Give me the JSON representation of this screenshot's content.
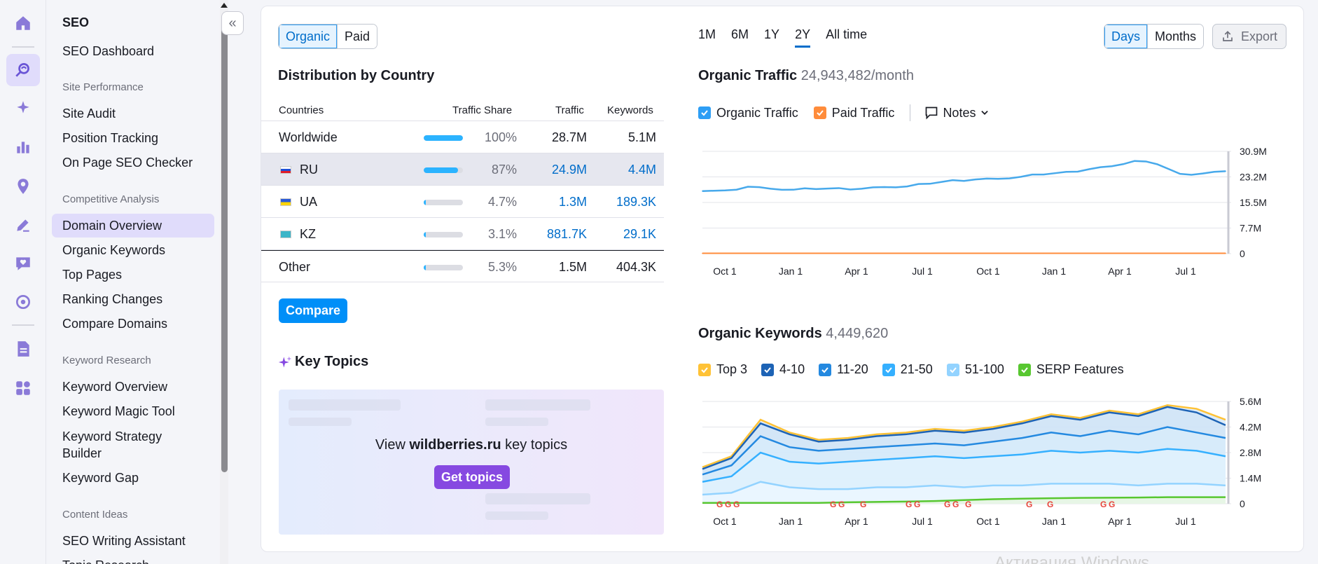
{
  "nav": {
    "section_title": "SEO",
    "dashboard": "SEO Dashboard",
    "groups": [
      {
        "header": "Site Performance",
        "items": [
          "Site Audit",
          "Position Tracking",
          "On Page SEO Checker"
        ]
      },
      {
        "header": "Competitive Analysis",
        "items": [
          "Domain Overview",
          "Organic Keywords",
          "Top Pages",
          "Ranking Changes",
          "Compare Domains"
        ]
      },
      {
        "header": "Keyword Research",
        "items": [
          "Keyword Overview",
          "Keyword Magic Tool",
          "Keyword Strategy Builder",
          "Keyword Gap"
        ]
      },
      {
        "header": "Content Ideas",
        "items": [
          "SEO Writing Assistant",
          "Topic Research"
        ]
      }
    ],
    "active_item": "Domain Overview"
  },
  "toggle": {
    "organic": "Organic",
    "paid": "Paid",
    "selected": "Organic"
  },
  "distribution": {
    "title": "Distribution by Country",
    "columns": [
      "Countries",
      "Traffic Share",
      "Traffic",
      "Keywords"
    ],
    "rows": [
      {
        "country": "Worldwide",
        "share": "100%",
        "share_value": 1.0,
        "traffic": "28.7M",
        "keywords": "5.1M"
      },
      {
        "country": "RU",
        "share": "87%",
        "share_value": 0.87,
        "traffic": "24.9M",
        "keywords": "4.4M"
      },
      {
        "country": "UA",
        "share": "4.7%",
        "share_value": 0.047,
        "traffic": "1.3M",
        "keywords": "189.3K"
      },
      {
        "country": "KZ",
        "share": "3.1%",
        "share_value": 0.031,
        "traffic": "881.7K",
        "keywords": "29.1K"
      },
      {
        "country": "Other",
        "share": "5.3%",
        "share_value": 0.053,
        "traffic": "1.5M",
        "keywords": "404.3K"
      }
    ],
    "compare_button": "Compare"
  },
  "key_topics": {
    "title": "Key Topics",
    "message_prefix": "View ",
    "domain": "wildberries.ru",
    "message_suffix": " key topics",
    "button": "Get topics"
  },
  "periods": {
    "items": [
      "1M",
      "6M",
      "1Y",
      "2Y",
      "All time"
    ],
    "selected": "2Y"
  },
  "granularity": {
    "days": "Days",
    "months": "Months",
    "selected": "Days"
  },
  "export_label": "Export",
  "traffic": {
    "title": "Organic Traffic",
    "value": "24,943,482/month",
    "legend": [
      "Organic Traffic",
      "Paid Traffic"
    ],
    "notes": "Notes",
    "colors": {
      "organic": "#47a9eb",
      "paid": "#ff8c3b"
    }
  },
  "keywords": {
    "title": "Organic Keywords",
    "value": "4,449,620",
    "legend": [
      "Top 3",
      "4-10",
      "11-20",
      "21-50",
      "51-100",
      "SERP Features"
    ],
    "colors": [
      "#ffc236",
      "#1d63b5",
      "#2489e0",
      "#35b0ff",
      "#93d3ff",
      "#58c730"
    ]
  },
  "chart_data": [
    {
      "type": "line",
      "title": "Organic Traffic",
      "x_ticks": [
        "Oct 1",
        "Jan 1",
        "Apr 1",
        "Jul 1",
        "Oct 1",
        "Jan 1",
        "Apr 1",
        "Jul 1"
      ],
      "y_ticks": [
        "30.9M",
        "23.2M",
        "15.5M",
        "7.7M",
        "0"
      ],
      "ylim": [
        0,
        30.9
      ],
      "series": [
        {
          "name": "Organic Traffic",
          "values": [
            18.9,
            19.1,
            20.2,
            19.6,
            19.3,
            19.5,
            19.8,
            19.6,
            20.1,
            20.3,
            21.1,
            22.2,
            22.4,
            22.6,
            23.2,
            23.9,
            24.7,
            25.5,
            26.4,
            28.0,
            27.0,
            24.1,
            24.2,
            24.9
          ]
        },
        {
          "name": "Paid Traffic",
          "values": [
            0.1,
            0.1,
            0.1,
            0.1,
            0.1,
            0.1,
            0.1,
            0.1,
            0.1,
            0.1,
            0.1,
            0.1,
            0.1,
            0.1,
            0.1,
            0.1,
            0.1,
            0.1,
            0.1,
            0.1,
            0.1,
            0.1,
            0.1,
            0.1
          ]
        }
      ]
    },
    {
      "type": "area",
      "title": "Organic Keywords",
      "x_ticks": [
        "Oct 1",
        "Jan 1",
        "Apr 1",
        "Jul 1",
        "Oct 1",
        "Jan 1",
        "Apr 1",
        "Jul 1"
      ],
      "y_ticks": [
        "5.6M",
        "4.2M",
        "2.8M",
        "1.4M",
        "0"
      ],
      "ylim": [
        0,
        5.6
      ],
      "series": [
        {
          "name": "Top 3",
          "values": [
            2.0,
            2.6,
            4.6,
            3.9,
            3.5,
            3.6,
            3.8,
            3.9,
            4.1,
            4.0,
            4.2,
            4.5,
            4.9,
            4.7,
            5.1,
            4.9,
            5.4,
            5.2,
            4.6
          ]
        },
        {
          "name": "4-10",
          "values": [
            1.9,
            2.5,
            4.4,
            3.8,
            3.4,
            3.5,
            3.7,
            3.8,
            4.0,
            3.9,
            4.1,
            4.4,
            4.8,
            4.6,
            5.0,
            4.8,
            5.3,
            5.0,
            4.3
          ]
        },
        {
          "name": "11-20",
          "values": [
            1.6,
            2.1,
            3.7,
            3.1,
            2.9,
            3.0,
            3.1,
            3.2,
            3.3,
            3.2,
            3.4,
            3.6,
            3.9,
            3.7,
            4.0,
            3.8,
            4.2,
            3.9,
            3.6
          ]
        },
        {
          "name": "21-50",
          "values": [
            1.2,
            1.5,
            2.8,
            2.3,
            2.2,
            2.3,
            2.4,
            2.5,
            2.6,
            2.5,
            2.6,
            2.7,
            2.9,
            2.8,
            2.9,
            2.8,
            3.0,
            2.9,
            2.6
          ]
        },
        {
          "name": "51-100",
          "values": [
            0.5,
            0.6,
            1.2,
            0.9,
            0.8,
            0.8,
            0.9,
            0.9,
            1.0,
            0.9,
            1.0,
            1.0,
            1.1,
            1.1,
            1.1,
            1.0,
            1.1,
            1.1,
            1.0
          ]
        },
        {
          "name": "SERP Features",
          "values": [
            0.05,
            0.05,
            0.05,
            0.05,
            0.05,
            0.08,
            0.1,
            0.12,
            0.15,
            0.2,
            0.25,
            0.28,
            0.3,
            0.32,
            0.33,
            0.34,
            0.36,
            0.36,
            0.36
          ]
        }
      ]
    }
  ],
  "watermark": "Активация Windows"
}
